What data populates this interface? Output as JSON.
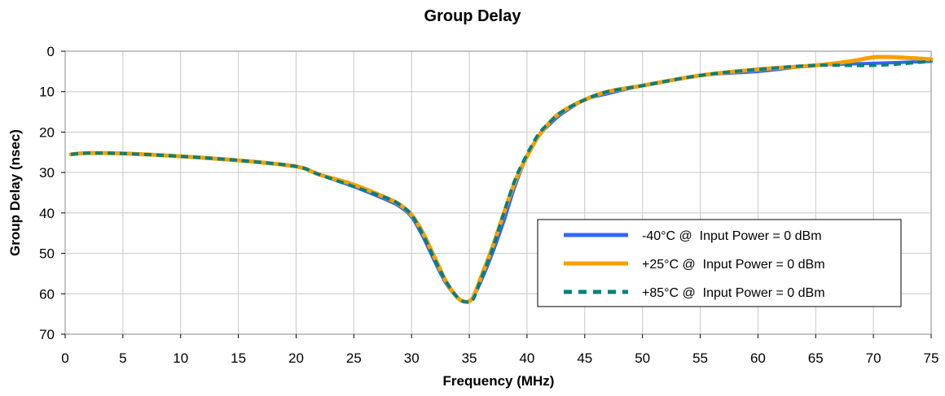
{
  "chart_data": {
    "type": "line",
    "title": "Group Delay",
    "xlabel": "Frequency (MHz)",
    "ylabel": "Group Delay (nsec)",
    "xlim": [
      0,
      75
    ],
    "ylim": [
      0,
      70
    ],
    "y_inverted": true,
    "x_ticks": [
      0,
      5,
      10,
      15,
      20,
      25,
      30,
      35,
      40,
      45,
      50,
      55,
      60,
      65,
      70,
      75
    ],
    "y_ticks": [
      0,
      10,
      20,
      30,
      40,
      50,
      60,
      70
    ],
    "grid": true,
    "legend_position": "right",
    "series": [
      {
        "name": "-40°C @  Input Power = 0 dBm",
        "color": "#3366ff",
        "style": "solid",
        "x": [
          0.5,
          2,
          5,
          10,
          15,
          20,
          22,
          25,
          28,
          29,
          30,
          31,
          32,
          33,
          34,
          34.7,
          35.3,
          36,
          37,
          38,
          39,
          40,
          41,
          42,
          43,
          45,
          47,
          50,
          55,
          60,
          65,
          70,
          75
        ],
        "y": [
          25.5,
          25.2,
          25.3,
          26,
          27,
          28.5,
          30.5,
          33.5,
          37,
          38.5,
          41,
          46,
          52,
          57.5,
          61,
          62,
          61,
          57,
          50,
          42,
          33,
          26,
          21,
          18,
          15.5,
          12,
          10.5,
          8.5,
          6,
          5,
          3.5,
          3,
          2.5
        ]
      },
      {
        "name": "+25°C @  Input Power = 0 dBm",
        "color": "#f5a000",
        "style": "solid",
        "x": [
          0.5,
          2,
          5,
          10,
          15,
          20,
          22,
          25,
          28,
          29,
          30,
          31,
          32,
          33,
          34,
          34.7,
          35.3,
          36,
          37,
          38,
          39,
          40,
          41,
          42,
          43,
          45,
          47,
          50,
          55,
          60,
          65,
          68,
          70,
          72,
          75
        ],
        "y": [
          25.5,
          25.2,
          25.3,
          26,
          27,
          28.5,
          30.5,
          33,
          36.5,
          38,
          40.5,
          45,
          51,
          57,
          61,
          62,
          61,
          56,
          48.5,
          40,
          32,
          26,
          21,
          17.5,
          15,
          12,
          10,
          8.5,
          6,
          4.5,
          3.5,
          2.5,
          1.5,
          1.5,
          2
        ]
      },
      {
        "name": "+85°C @  Input Power = 0 dBm",
        "color": "#008080",
        "style": "dashed",
        "x": [
          0.5,
          2,
          5,
          10,
          15,
          20,
          22,
          25,
          28,
          29,
          30,
          31,
          32,
          33,
          34,
          34.7,
          35.3,
          36,
          37,
          38,
          39,
          40,
          41,
          42,
          43,
          45,
          47,
          50,
          55,
          60,
          65,
          70,
          75
        ],
        "y": [
          25.5,
          25.2,
          25.3,
          26,
          27,
          28.5,
          30.5,
          33.5,
          36.5,
          38,
          40.5,
          45.5,
          51.5,
          57,
          61,
          62,
          61.5,
          56.5,
          49,
          40,
          31.5,
          25.5,
          20.5,
          17.5,
          15,
          12,
          10,
          8.5,
          6,
          4.5,
          3.5,
          3.5,
          2.5
        ]
      }
    ]
  }
}
